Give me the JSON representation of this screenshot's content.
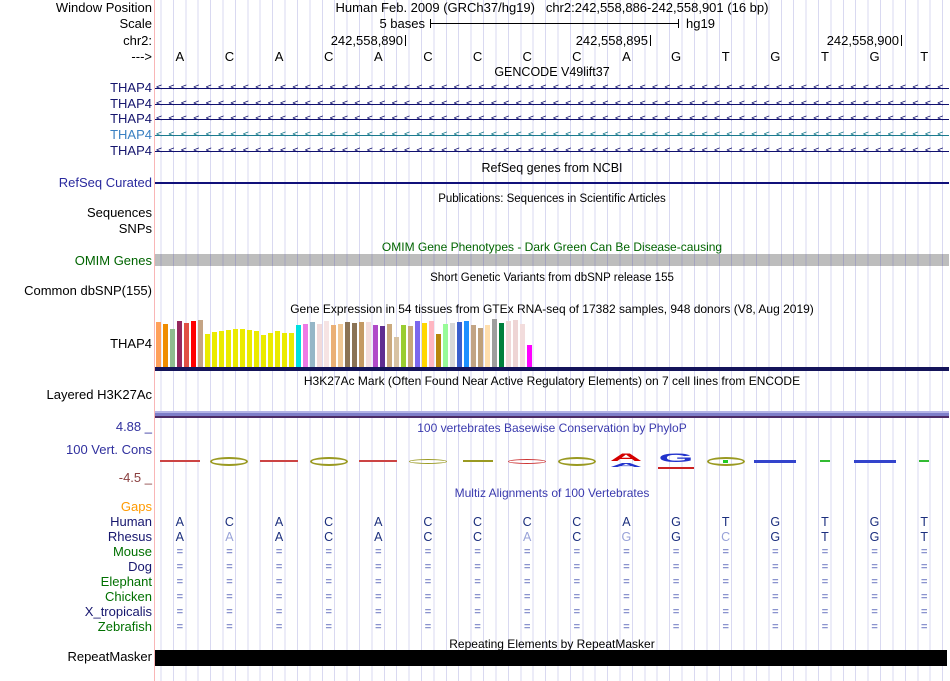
{
  "header": {
    "assembly_line": "Human Feb. 2009 (GRCh37/hg19)",
    "range_line": "chr2:242,558,886-242,558,901 (16 bp)",
    "window_position_label": "Window Position",
    "scale_label": "Scale",
    "scale_value": "5 bases",
    "assembly_short": "hg19",
    "chrom_label": "chr2:",
    "strand_label": "--->",
    "coord_ticks": [
      "242,558,890",
      "242,558,895",
      "242,558,900"
    ]
  },
  "sequence": {
    "bases": [
      "A",
      "C",
      "A",
      "C",
      "A",
      "C",
      "C",
      "C",
      "C",
      "A",
      "G",
      "T",
      "G",
      "T",
      "G",
      "T"
    ]
  },
  "left_labels": [
    {
      "t": "Window Position",
      "c": "#000000"
    },
    {
      "t": "Scale",
      "c": "#000000"
    },
    {
      "t": "chr2:",
      "c": "#000000"
    },
    {
      "t": "--->",
      "c": "#000000"
    },
    {
      "t": "THAP4",
      "c": "#16166e"
    },
    {
      "t": "THAP4",
      "c": "#16166e"
    },
    {
      "t": "THAP4",
      "c": "#16166e"
    },
    {
      "t": "THAP4",
      "c": "#3a80c2"
    },
    {
      "t": "THAP4",
      "c": "#16166e"
    },
    {
      "t": "RefSeq Curated",
      "c": "#2a2a9e"
    },
    {
      "t": "Sequences",
      "c": "#000000"
    },
    {
      "t": "SNPs",
      "c": "#000000"
    },
    {
      "t": "OMIM Genes",
      "c": "#006400"
    },
    {
      "t": "Common dbSNP(155)",
      "c": "#000000"
    },
    {
      "t": "THAP4",
      "c": "#000000"
    },
    {
      "t": "Layered H3K27Ac",
      "c": "#000000"
    },
    {
      "t": "4.88 _",
      "c": "#30309e"
    },
    {
      "t": "100 Vert. Cons",
      "c": "#30309e"
    },
    {
      "t": "-4.5 _",
      "c": "#8b4040"
    },
    {
      "t": "Gaps",
      "c": "#ff9a00"
    },
    {
      "t": "Human",
      "c": "#16166e"
    },
    {
      "t": "Rhesus",
      "c": "#16166e"
    },
    {
      "t": "Mouse",
      "c": "#007000"
    },
    {
      "t": "Dog",
      "c": "#16166e"
    },
    {
      "t": "Elephant",
      "c": "#007000"
    },
    {
      "t": "Chicken",
      "c": "#007000"
    },
    {
      "t": "X_tropicalis",
      "c": "#16166e"
    },
    {
      "t": "Zebrafish",
      "c": "#007000"
    },
    {
      "t": "RepeatMasker",
      "c": "#000000"
    }
  ],
  "center_titles": [
    {
      "t": "GENCODE V49lift37",
      "c": "#000000"
    },
    {
      "t": "RefSeq genes from NCBI",
      "c": "#000000"
    },
    {
      "t": "Publications: Sequences in Scientific Articles",
      "c": "#000000"
    },
    {
      "t": "OMIM Gene Phenotypes - Dark Green Can Be Disease-causing",
      "c": "#006400"
    },
    {
      "t": "Short Genetic Variants from dbSNP release 155",
      "c": "#000000"
    },
    {
      "t": "Gene Expression in 54 tissues from GTEx RNA-seq of 17382 samples, 948 donors (V8, Aug 2019)",
      "c": "#000000"
    },
    {
      "t": "H3K27Ac Mark (Often Found Near Active Regulatory Elements) on 7 cell lines from ENCODE",
      "c": "#000000"
    },
    {
      "t": "100 vertebrates Basewise Conservation by PhyloP",
      "c": "#3a3aae"
    },
    {
      "t": "Multiz Alignments of 100 Vertebrates",
      "c": "#3a3aae"
    },
    {
      "t": "Repeating Elements by RepeatMasker",
      "c": "#000000"
    }
  ],
  "gencode": {
    "transcripts": [
      {
        "name": "THAP4",
        "line_color": "#10106e"
      },
      {
        "name": "THAP4",
        "line_color": "#10106e"
      },
      {
        "name": "THAP4",
        "line_color": "#10106e"
      },
      {
        "name": "THAP4",
        "line_color": "#1b7b8e"
      },
      {
        "name": "THAP4",
        "line_color": "#10106e"
      }
    ],
    "strand_glyph": "<"
  },
  "refseq": {
    "line_color": "#10107a"
  },
  "omim": {
    "bar_color": "#bdbdbd"
  },
  "gtex": {
    "baseline_color": "#14145a",
    "bars": [
      {
        "c": "#ffa05a",
        "h": 0.93
      },
      {
        "c": "#ef8c00",
        "h": 0.9
      },
      {
        "c": "#8fbc8f",
        "h": 0.8
      },
      {
        "c": "#96285f",
        "h": 0.95
      },
      {
        "c": "#e05045",
        "h": 0.92
      },
      {
        "c": "#ff0000",
        "h": 0.95
      },
      {
        "c": "#c4a484",
        "h": 0.97
      },
      {
        "c": "#ebeb00",
        "h": 0.68
      },
      {
        "c": "#ebeb00",
        "h": 0.72
      },
      {
        "c": "#ebeb00",
        "h": 0.75
      },
      {
        "c": "#ebeb00",
        "h": 0.78
      },
      {
        "c": "#ebeb00",
        "h": 0.8
      },
      {
        "c": "#ebeb00",
        "h": 0.8
      },
      {
        "c": "#ebeb00",
        "h": 0.78
      },
      {
        "c": "#ebeb00",
        "h": 0.76
      },
      {
        "c": "#ebeb00",
        "h": 0.66
      },
      {
        "c": "#ebeb00",
        "h": 0.7
      },
      {
        "c": "#ebeb00",
        "h": 0.74
      },
      {
        "c": "#ebeb00",
        "h": 0.7
      },
      {
        "c": "#ebeb00",
        "h": 0.7
      },
      {
        "c": "#00e0e0",
        "h": 0.88
      },
      {
        "c": "#ee7ae6",
        "h": 0.9
      },
      {
        "c": "#95b6c7",
        "h": 0.94
      },
      {
        "c": "#f2dada",
        "h": 0.9
      },
      {
        "c": "#f6e3e3",
        "h": 0.95
      },
      {
        "c": "#eab076",
        "h": 0.88
      },
      {
        "c": "#f0c896",
        "h": 0.9
      },
      {
        "c": "#8b7355",
        "h": 0.94
      },
      {
        "c": "#8b7355",
        "h": 0.92
      },
      {
        "c": "#c49a64",
        "h": 0.93
      },
      {
        "c": "#f4dede",
        "h": 0.93
      },
      {
        "c": "#b04ac8",
        "h": 0.88
      },
      {
        "c": "#5f2d91",
        "h": 0.85
      },
      {
        "c": "#cbaa7e",
        "h": 0.9
      },
      {
        "c": "#d8c3a4",
        "h": 0.62
      },
      {
        "c": "#9acd32",
        "h": 0.88
      },
      {
        "c": "#c8a87a",
        "h": 0.85
      },
      {
        "c": "#7b68ee",
        "h": 0.95
      },
      {
        "c": "#ffd700",
        "h": 0.92
      },
      {
        "c": "#ffb6c1",
        "h": 0.95
      },
      {
        "c": "#b8860b",
        "h": 0.68
      },
      {
        "c": "#98fb98",
        "h": 0.9
      },
      {
        "c": "#d8d8d8",
        "h": 0.92
      },
      {
        "c": "#3a5fcd",
        "h": 0.93
      },
      {
        "c": "#1e90ff",
        "h": 0.95
      },
      {
        "c": "#c2a484",
        "h": 0.88
      },
      {
        "c": "#bfa07a",
        "h": 0.82
      },
      {
        "c": "#ffdead",
        "h": 0.88
      },
      {
        "c": "#9e9e9e",
        "h": 1.0
      },
      {
        "c": "#00803c",
        "h": 0.92
      },
      {
        "c": "#f0d8d8",
        "h": 0.95
      },
      {
        "c": "#eed5d5",
        "h": 0.97
      },
      {
        "c": "#f2dcdc",
        "h": 0.9
      },
      {
        "c": "#ff00ff",
        "h": 0.45
      }
    ]
  },
  "h3k27ac": {
    "band_colors": [
      "#b3b3e6",
      "#7e7ec9",
      "#4c2b66"
    ]
  },
  "conservation": {
    "glyphs": [
      {
        "t": "dash",
        "c": "#cc4444",
        "w": 40
      },
      {
        "t": "ellipse",
        "c": "#9a9a22"
      },
      {
        "t": "dash",
        "c": "#cc4444",
        "w": 38
      },
      {
        "t": "ellipse",
        "c": "#9a9a22"
      },
      {
        "t": "dash",
        "c": "#cc4444",
        "w": 38
      },
      {
        "t": "flat",
        "c": "#9a9a22"
      },
      {
        "t": "dash",
        "c": "#9a9a22",
        "w": 30
      },
      {
        "t": "flat",
        "c": "#cc3333"
      },
      {
        "t": "ellipse",
        "c": "#9a9a22"
      },
      {
        "t": "letterA",
        "c": "#d40000"
      },
      {
        "t": "letterG",
        "c": "#2233cc"
      },
      {
        "t": "dotellipse",
        "c": "#9a9a22"
      },
      {
        "t": "dash2",
        "c": "#3344cc",
        "w": 42
      },
      {
        "t": "dash",
        "c": "#33bb33",
        "w": 10
      },
      {
        "t": "dash2",
        "c": "#3344cc",
        "w": 42
      },
      {
        "t": "dash",
        "c": "#33bb33",
        "w": 10
      }
    ]
  },
  "multiz": {
    "rhesus_bases": [
      "A",
      "A",
      "A",
      "C",
      "A",
      "C",
      "C",
      "A",
      "C",
      "G",
      "G",
      "C",
      "G",
      "T",
      "G",
      "T"
    ],
    "rhesus_dim_positions": [
      2,
      8,
      10,
      12
    ],
    "base_color": "#1c2f7e",
    "dim_color": "#98a2d8",
    "same_symbol": "=",
    "same_color": "#8a93ce",
    "same_row_count": 6
  },
  "repeatmasker": {
    "bar_color": "#000000"
  }
}
